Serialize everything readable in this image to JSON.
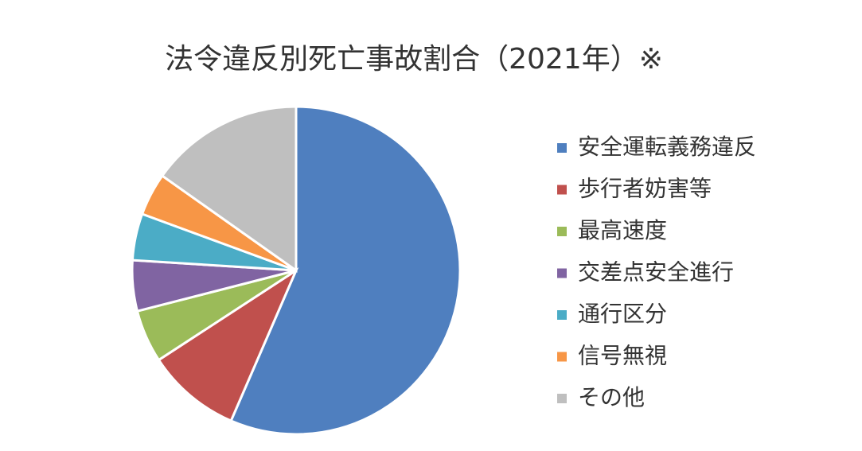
{
  "chart_data": {
    "type": "pie",
    "title": "法令違反別死亡事故割合（2021年）※",
    "categories": [
      "安全運転義務違反",
      "歩行者妨害等",
      "最高速度",
      "交差点安全進行",
      "通行区分",
      "信号無視",
      "その他"
    ],
    "values": [
      56.5,
      9.3,
      5.2,
      5.0,
      4.6,
      4.2,
      15.2
    ],
    "colors": [
      "#4f7fbf",
      "#c0504d",
      "#9bbb59",
      "#8064a2",
      "#4bacc6",
      "#f79646",
      "#bfbfbf"
    ],
    "legend": "right"
  }
}
